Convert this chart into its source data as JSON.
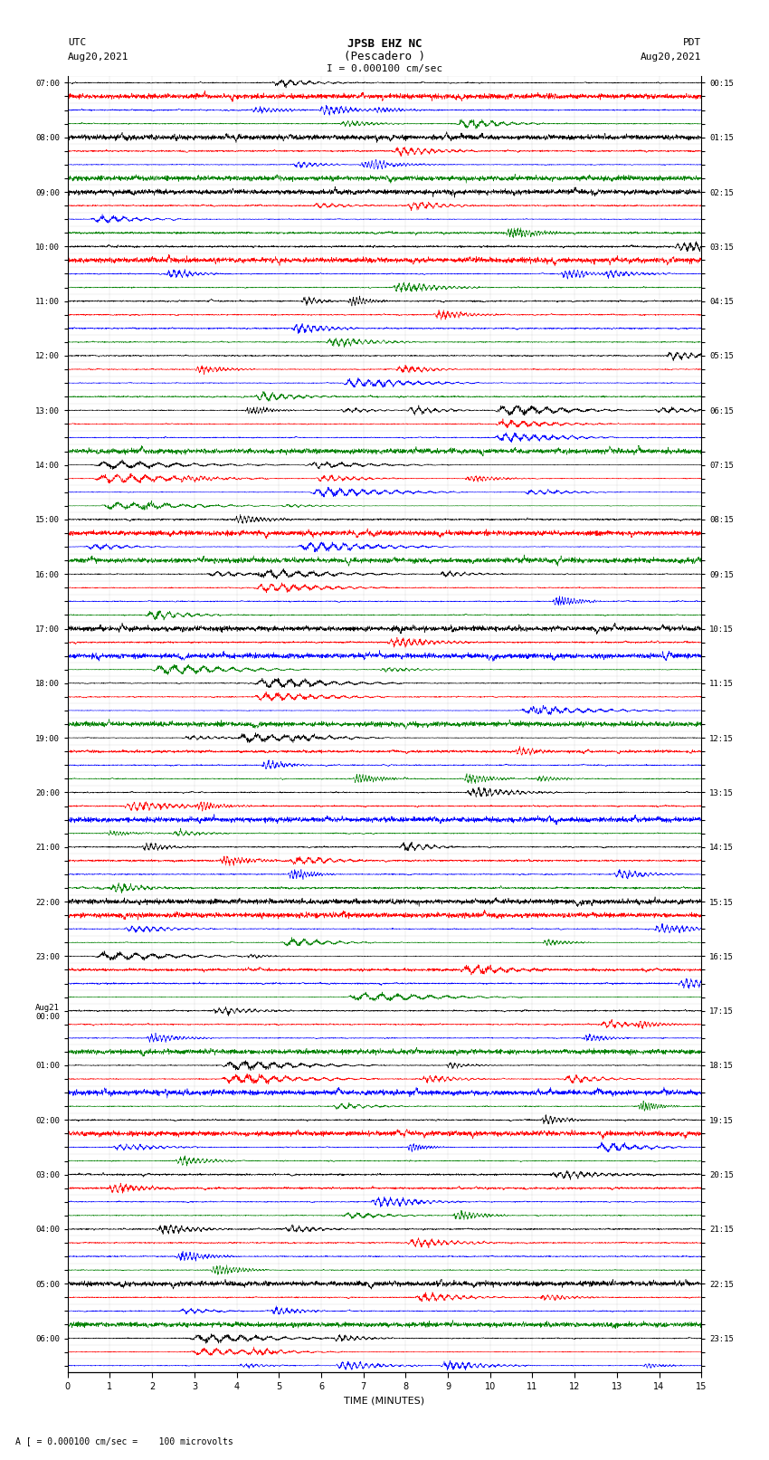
{
  "title_line1": "JPSB EHZ NC",
  "title_line2": "(Pescadero )",
  "title_line3": "I = 0.000100 cm/sec",
  "left_header_line1": "UTC",
  "left_header_line2": "Aug20,2021",
  "right_header_line1": "PDT",
  "right_header_line2": "Aug20,2021",
  "xlabel": "TIME (MINUTES)",
  "footer": "A [ = 0.000100 cm/sec =    100 microvolts",
  "left_time_labels": [
    "07:00",
    "",
    "",
    "",
    "08:00",
    "",
    "",
    "",
    "09:00",
    "",
    "",
    "",
    "10:00",
    "",
    "",
    "",
    "11:00",
    "",
    "",
    "",
    "12:00",
    "",
    "",
    "",
    "13:00",
    "",
    "",
    "",
    "14:00",
    "",
    "",
    "",
    "15:00",
    "",
    "",
    "",
    "16:00",
    "",
    "",
    "",
    "17:00",
    "",
    "",
    "",
    "18:00",
    "",
    "",
    "",
    "19:00",
    "",
    "",
    "",
    "20:00",
    "",
    "",
    "",
    "21:00",
    "",
    "",
    "",
    "22:00",
    "",
    "",
    "",
    "23:00",
    "",
    "",
    "",
    "Aug21\n00:00",
    "",
    "",
    "",
    "01:00",
    "",
    "",
    "",
    "02:00",
    "",
    "",
    "",
    "03:00",
    "",
    "",
    "",
    "04:00",
    "",
    "",
    "",
    "05:00",
    "",
    "",
    "",
    "06:00",
    "",
    ""
  ],
  "right_time_labels": [
    "00:15",
    "",
    "",
    "",
    "01:15",
    "",
    "",
    "",
    "02:15",
    "",
    "",
    "",
    "03:15",
    "",
    "",
    "",
    "04:15",
    "",
    "",
    "",
    "05:15",
    "",
    "",
    "",
    "06:15",
    "",
    "",
    "",
    "07:15",
    "",
    "",
    "",
    "08:15",
    "",
    "",
    "",
    "09:15",
    "",
    "",
    "",
    "10:15",
    "",
    "",
    "",
    "11:15",
    "",
    "",
    "",
    "12:15",
    "",
    "",
    "",
    "13:15",
    "",
    "",
    "",
    "14:15",
    "",
    "",
    "",
    "15:15",
    "",
    "",
    "",
    "16:15",
    "",
    "",
    "",
    "17:15",
    "",
    "",
    "",
    "18:15",
    "",
    "",
    "",
    "19:15",
    "",
    "",
    "",
    "20:15",
    "",
    "",
    "",
    "21:15",
    "",
    "",
    "",
    "22:15",
    "",
    "",
    "",
    "23:15",
    "",
    ""
  ],
  "colors": [
    "black",
    "red",
    "blue",
    "green"
  ],
  "num_rows": 95,
  "xmin": 0,
  "xmax": 15,
  "seed": 42
}
